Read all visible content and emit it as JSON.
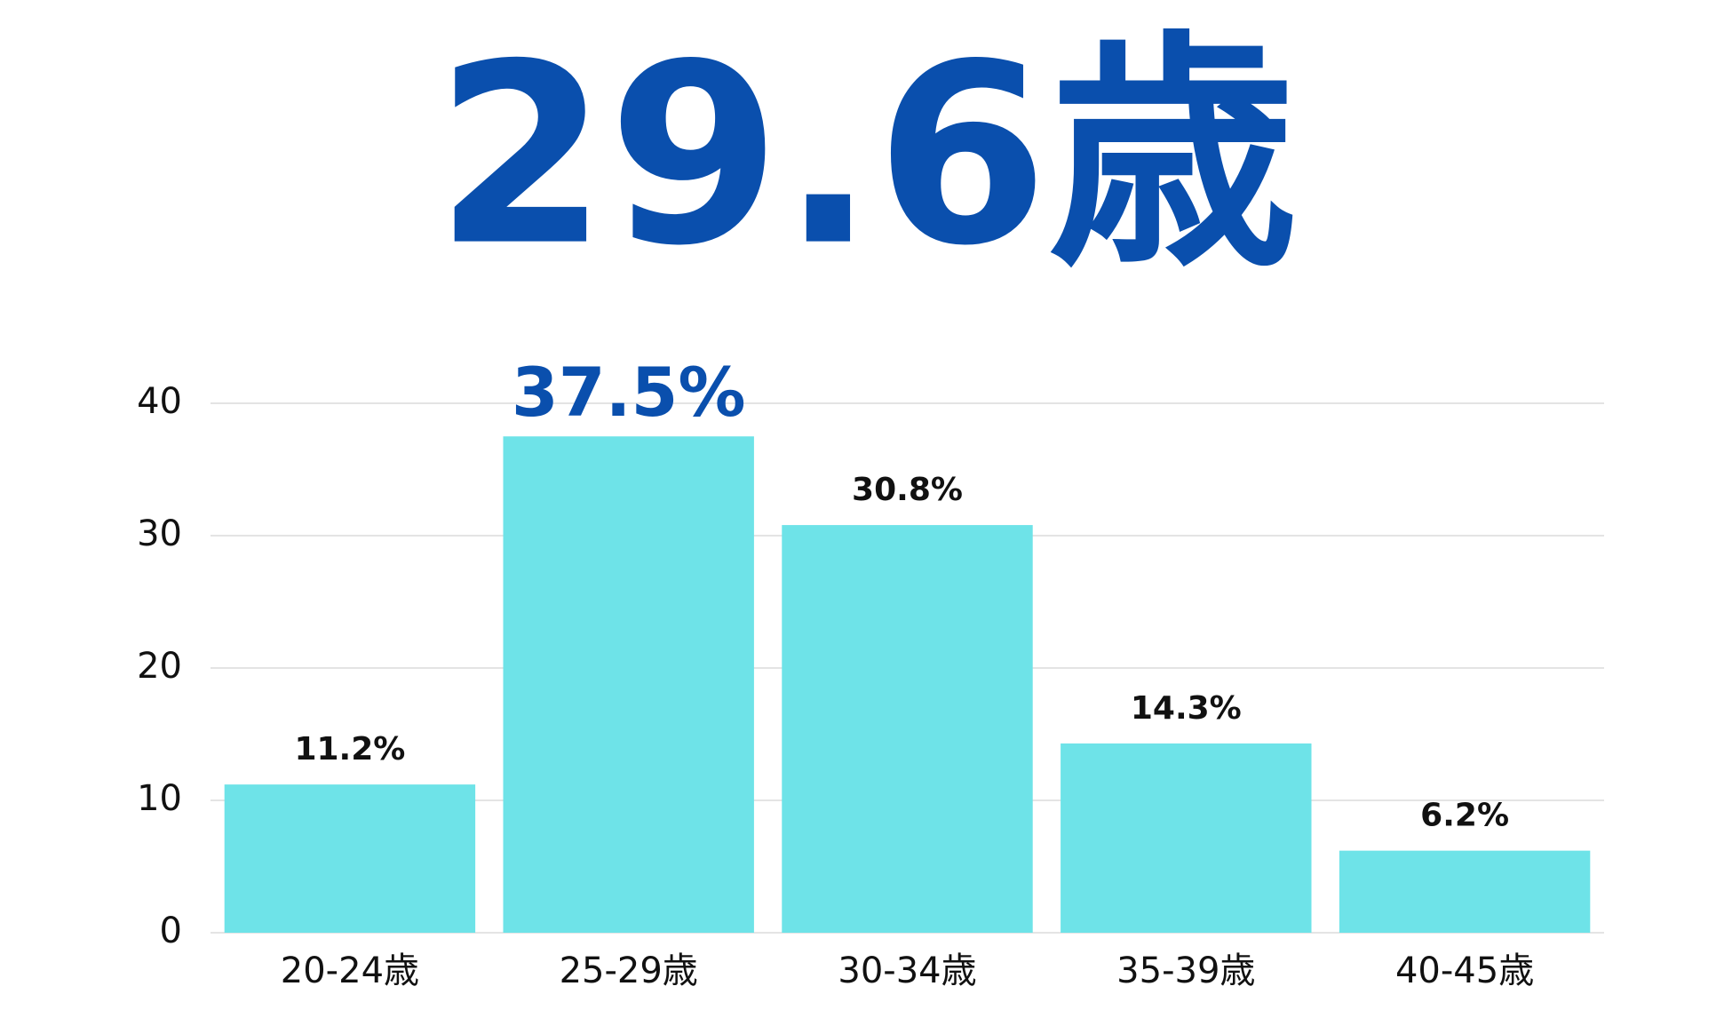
{
  "chart_data": {
    "type": "bar",
    "title": "29.6歳",
    "categories": [
      "20-24歳",
      "25-29歳",
      "30-34歳",
      "35-39歳",
      "40-45歳"
    ],
    "values": [
      11.2,
      37.5,
      30.8,
      14.3,
      6.2
    ],
    "value_labels": [
      "11.2%",
      "37.5%",
      "30.8%",
      "14.3%",
      "6.2%"
    ],
    "color": "#6ee3e8",
    "highlight_color": "#0a4fad",
    "title_color": "#0a4fad",
    "ylim": [
      0,
      40
    ],
    "yticks": [
      0,
      10,
      20,
      30,
      40
    ],
    "grid": true
  }
}
